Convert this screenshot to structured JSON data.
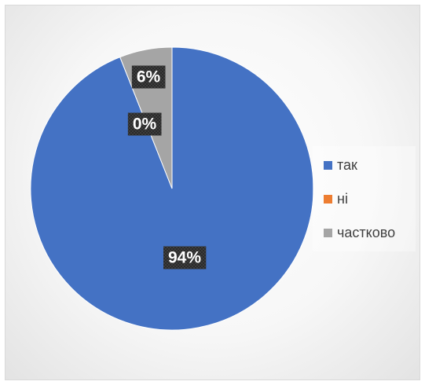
{
  "chart_data": {
    "type": "pie",
    "title": "",
    "categories": [
      "так",
      "ні",
      "частково"
    ],
    "values": [
      94,
      0,
      6
    ],
    "data_labels": [
      "94%",
      "0%",
      "6%"
    ],
    "colors": [
      "#4472C4",
      "#ED7D31",
      "#A5A5A5"
    ],
    "legend_position": "right",
    "start_angle_deg": 0,
    "direction": "clockwise"
  }
}
